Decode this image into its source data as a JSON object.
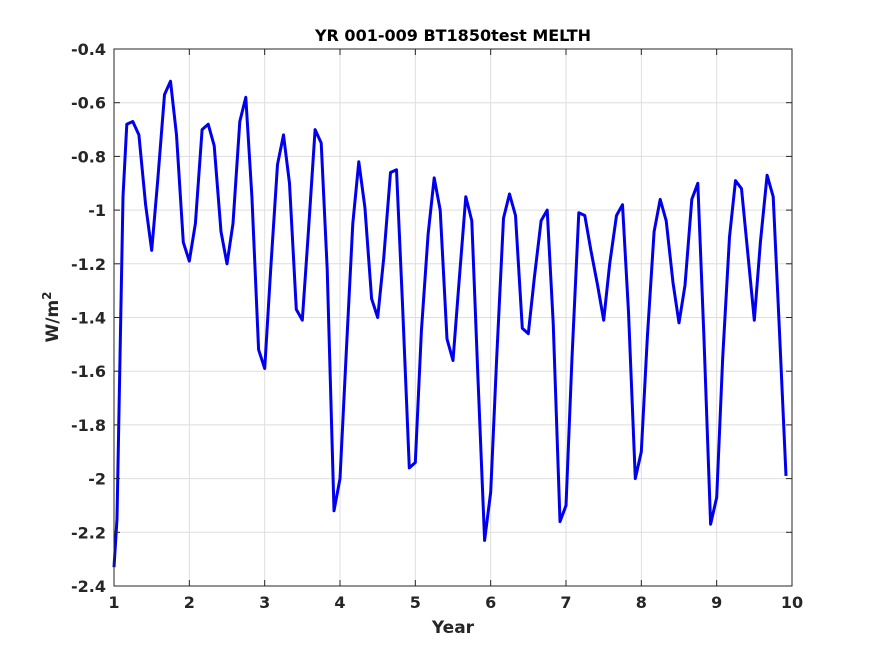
{
  "chart_data": {
    "type": "line",
    "title": "YR 001-009 BT1850test MELTH",
    "xlabel": "Year",
    "ylabel": "W/m",
    "ylabel_superscript": "2",
    "xlim": [
      1,
      10
    ],
    "ylim": [
      -2.4,
      -0.4
    ],
    "xticks": [
      1,
      2,
      3,
      4,
      5,
      6,
      7,
      8,
      9,
      10
    ],
    "yticks": [
      -2.4,
      -2.2,
      -2,
      -1.8,
      -1.6,
      -1.4,
      -1.2,
      -1,
      -0.8,
      -0.6,
      -0.4
    ],
    "xtick_labels": [
      "1",
      "2",
      "3",
      "4",
      "5",
      "6",
      "7",
      "8",
      "9",
      "10"
    ],
    "ytick_labels": [
      "-2.4",
      "-2.2",
      "-2",
      "-1.8",
      "-1.6",
      "-1.4",
      "-1.2",
      "-1",
      "-0.8",
      "-0.6",
      "-0.4"
    ],
    "grid": true,
    "line_color": "#0000ee",
    "series": [
      {
        "x": [
          1.0,
          1.04,
          1.08,
          1.12,
          1.17,
          1.25,
          1.33,
          1.42,
          1.5,
          1.58,
          1.67,
          1.75,
          1.83,
          1.92,
          2.0,
          2.08,
          2.17,
          2.25,
          2.33,
          2.42,
          2.5,
          2.58,
          2.67,
          2.75,
          2.83,
          2.92,
          3.0,
          3.08,
          3.17,
          3.25,
          3.33,
          3.42,
          3.5,
          3.58,
          3.67,
          3.75,
          3.83,
          3.92,
          4.0,
          4.08,
          4.17,
          4.25,
          4.33,
          4.42,
          4.5,
          4.58,
          4.67,
          4.75,
          4.83,
          4.92,
          5.0,
          5.08,
          5.17,
          5.25,
          5.33,
          5.42,
          5.5,
          5.58,
          5.67,
          5.75,
          5.83,
          5.92,
          6.0,
          6.08,
          6.17,
          6.25,
          6.33,
          6.42,
          6.5,
          6.58,
          6.67,
          6.75,
          6.83,
          6.92,
          7.0,
          7.08,
          7.17,
          7.25,
          7.33,
          7.42,
          7.5,
          7.58,
          7.67,
          7.75,
          7.83,
          7.92,
          8.0,
          8.08,
          8.17,
          8.25,
          8.33,
          8.42,
          8.5,
          8.58,
          8.67,
          8.75,
          8.83,
          8.92,
          9.0,
          9.08,
          9.17,
          9.25,
          9.33,
          9.42,
          9.5,
          9.58,
          9.67,
          9.75,
          9.83,
          9.92
        ],
        "y": [
          -2.33,
          -2.15,
          -1.55,
          -0.95,
          -0.68,
          -0.67,
          -0.72,
          -0.98,
          -1.15,
          -0.89,
          -0.57,
          -0.52,
          -0.72,
          -1.12,
          -1.19,
          -1.05,
          -0.7,
          -0.68,
          -0.76,
          -1.08,
          -1.2,
          -1.05,
          -0.67,
          -0.58,
          -0.95,
          -1.52,
          -1.59,
          -1.22,
          -0.83,
          -0.72,
          -0.9,
          -1.37,
          -1.41,
          -1.08,
          -0.7,
          -0.75,
          -1.22,
          -2.12,
          -2.0,
          -1.55,
          -1.05,
          -0.82,
          -0.99,
          -1.33,
          -1.4,
          -1.18,
          -0.86,
          -0.85,
          -1.35,
          -1.96,
          -1.94,
          -1.45,
          -1.09,
          -0.88,
          -1.0,
          -1.48,
          -1.56,
          -1.27,
          -0.95,
          -1.04,
          -1.62,
          -2.23,
          -2.05,
          -1.55,
          -1.03,
          -0.94,
          -1.02,
          -1.44,
          -1.46,
          -1.25,
          -1.04,
          -1.0,
          -1.42,
          -2.16,
          -2.1,
          -1.55,
          -1.01,
          -1.02,
          -1.15,
          -1.28,
          -1.41,
          -1.2,
          -1.02,
          -0.98,
          -1.38,
          -2.0,
          -1.9,
          -1.47,
          -1.08,
          -0.96,
          -1.04,
          -1.27,
          -1.42,
          -1.28,
          -0.96,
          -0.9,
          -1.47,
          -2.17,
          -2.07,
          -1.55,
          -1.1,
          -0.89,
          -0.92,
          -1.18,
          -1.41,
          -1.12,
          -0.87,
          -0.95,
          -1.43,
          -1.99
        ]
      }
    ]
  }
}
